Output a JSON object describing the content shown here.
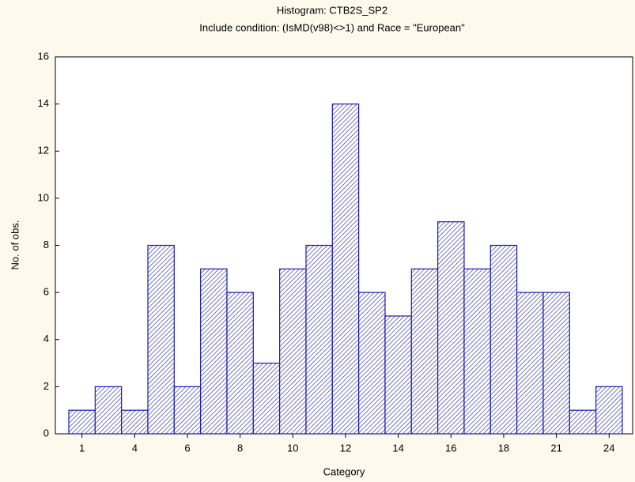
{
  "chart_data": {
    "type": "bar",
    "title": "Histogram: CTB2S_SP2",
    "subtitle": "Include condition: (IsMD(v98)<>1)  and Race = \"European\"",
    "xlabel": "Category",
    "ylabel": "No. of obs.",
    "categories": [
      "1",
      null,
      "4",
      null,
      "6",
      null,
      "8",
      null,
      "10",
      null,
      "12",
      null,
      "14",
      null,
      "16",
      null,
      "18",
      null,
      "21",
      null,
      "24"
    ],
    "values": [
      1,
      2,
      1,
      8,
      2,
      7,
      6,
      3,
      7,
      8,
      14,
      6,
      5,
      7,
      9,
      7,
      8,
      6,
      6,
      1,
      2
    ],
    "color": "#1c1ca8",
    "ylim": [
      0,
      16
    ],
    "yticks": [
      0,
      2,
      4,
      6,
      8,
      10,
      12,
      14,
      16
    ]
  }
}
